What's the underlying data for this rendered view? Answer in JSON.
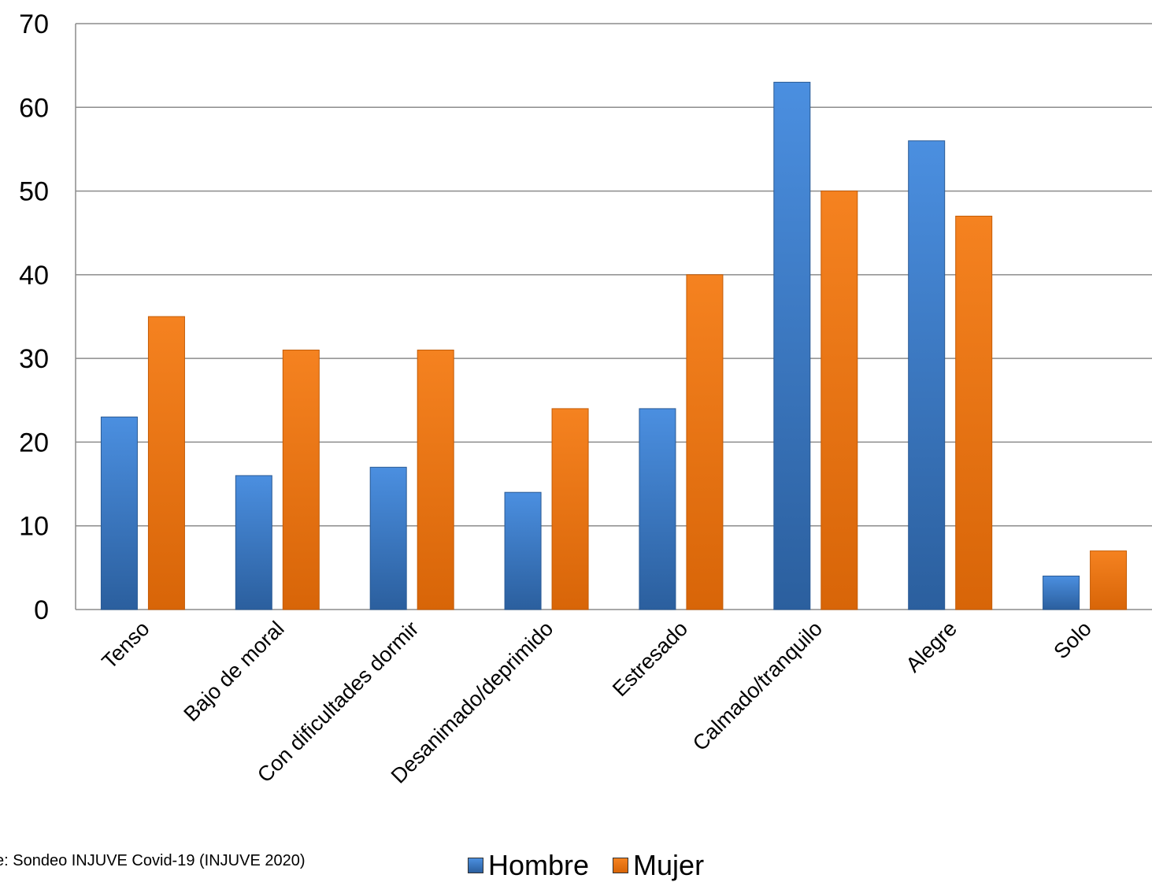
{
  "chart_data": {
    "type": "bar",
    "categories": [
      "Tenso",
      "Bajo de moral",
      "Con dificultades dormir",
      "Desanimado/deprimido",
      "Estresado",
      "Calmado/tranquilo",
      "Alegre",
      "Solo"
    ],
    "series": [
      {
        "name": "Hombre",
        "color": "#3f7fcf",
        "values": [
          23,
          16,
          17,
          14,
          24,
          63,
          56,
          4
        ]
      },
      {
        "name": "Mujer",
        "color": "#ee7417",
        "values": [
          35,
          31,
          31,
          24,
          40,
          50,
          47,
          7
        ]
      }
    ],
    "ylim": [
      0,
      70
    ],
    "yticks": [
      "0",
      "10",
      "20",
      "30",
      "40",
      "50",
      "60",
      "70"
    ],
    "grid": true,
    "legend_position": "bottom"
  },
  "source_note": "e:  Sondeo INJUVE Covid-19 (INJUVE 2020)"
}
